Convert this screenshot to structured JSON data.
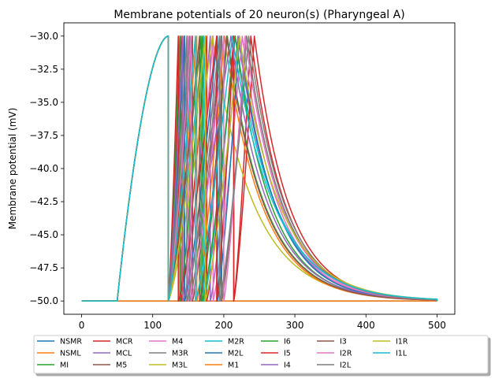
{
  "chart_data": {
    "type": "line",
    "title": "Membrane potentials of 20 neuron(s) (Pharyngeal A)",
    "xlabel": "",
    "ylabel": "Membrane potential (mV)",
    "xlim": [
      -25,
      525
    ],
    "ylim": [
      -51,
      -29
    ],
    "xticks": [
      0,
      100,
      200,
      300,
      400,
      500
    ],
    "yticks": [
      -50.0,
      -47.5,
      -45.0,
      -42.5,
      -40.0,
      -37.5,
      -35.0,
      -32.5,
      -30.0
    ],
    "ytick_labels": [
      "−50.0",
      "−47.5",
      "−45.0",
      "−42.5",
      "−40.0",
      "−37.5",
      "−35.0",
      "−32.5",
      "−30.0"
    ],
    "grid": false,
    "legend_position": "bottom",
    "legend_columns": 8,
    "rest": -50,
    "threshold": -30,
    "t_end": 500,
    "series": [
      {
        "name": "NSMR",
        "color": "#1f77b4",
        "spikes": [],
        "decay": 45,
        "flat": true
      },
      {
        "name": "NSML",
        "color": "#ff7f0e",
        "spikes": [],
        "decay": 45,
        "flat": true
      },
      {
        "name": "MI",
        "color": "#2ca02c",
        "onset": 50,
        "spikes": [
          122,
          168,
          205
        ],
        "decay": 52
      },
      {
        "name": "MCR",
        "color": "#d62728",
        "onset": 50,
        "spikes": [
          122,
          140,
          176,
          214,
          238
        ],
        "decay": 48
      },
      {
        "name": "MCL",
        "color": "#9467bd",
        "onset": 50,
        "spikes": [
          122,
          144,
          181,
          220
        ],
        "decay": 52
      },
      {
        "name": "M5",
        "color": "#8c564b",
        "onset": 50,
        "spikes": [
          122,
          156,
          197,
          232
        ],
        "decay": 50
      },
      {
        "name": "M4",
        "color": "#e377c2",
        "onset": 50,
        "spikes": [
          122,
          150,
          185,
          226
        ],
        "decay": 50
      },
      {
        "name": "M3R",
        "color": "#7f7f7f",
        "onset": 50,
        "spikes": [
          122,
          152,
          196,
          232
        ],
        "decay": 50
      },
      {
        "name": "M3L",
        "color": "#bcbd22",
        "onset": 50,
        "spikes": [
          122,
          184
        ],
        "decay": 58
      },
      {
        "name": "M2R",
        "color": "#17becf",
        "onset": 50,
        "spikes": [
          122,
          172,
          216
        ],
        "decay": 56
      },
      {
        "name": "M2L",
        "color": "#1f77b4",
        "onset": 50,
        "spikes": [
          122,
          145,
          191,
          222
        ],
        "decay": 50
      },
      {
        "name": "M1",
        "color": "#ff7f0e",
        "onset": 50,
        "spikes": [
          122,
          162,
          201
        ],
        "decay": 52
      },
      {
        "name": "I6",
        "color": "#2ca02c",
        "onset": 50,
        "spikes": [
          122,
          138,
          170,
          216
        ],
        "decay": 50
      },
      {
        "name": "I5",
        "color": "#d62728",
        "onset": 50,
        "spikes": [
          122,
          136,
          190,
          214,
          243
        ],
        "decay": 48
      },
      {
        "name": "I4",
        "color": "#9467bd",
        "onset": 50,
        "spikes": [
          122,
          142,
          210
        ],
        "decay": 52
      },
      {
        "name": "I3",
        "color": "#8c564b",
        "onset": 50,
        "spikes": [
          122,
          166,
          204
        ],
        "decay": 52
      },
      {
        "name": "I2R",
        "color": "#e377c2",
        "onset": 50,
        "spikes": [
          122,
          154,
          200,
          230
        ],
        "decay": 50
      },
      {
        "name": "I2L",
        "color": "#7f7f7f",
        "onset": 50,
        "spikes": [
          122,
          148,
          194,
          235
        ],
        "decay": 50
      },
      {
        "name": "I1R",
        "color": "#bcbd22",
        "onset": 50,
        "spikes": [
          122,
          174,
          222
        ],
        "decay": 56
      },
      {
        "name": "I1L",
        "color": "#17becf",
        "onset": 50,
        "spikes": [
          122,
          160,
          212
        ],
        "decay": 58
      }
    ]
  }
}
